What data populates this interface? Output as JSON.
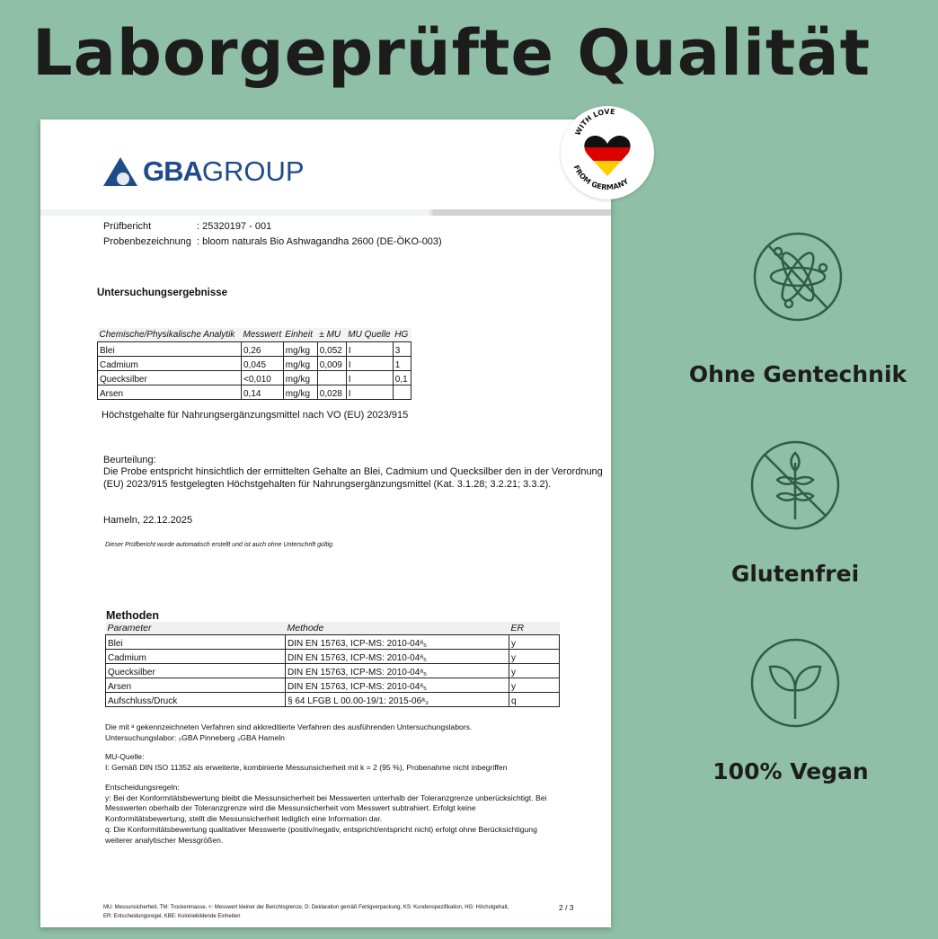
{
  "headline": "Laborgeprüfte Qualität",
  "badge": {
    "top_text": "WITH LOVE",
    "bottom_text": "FROM GERMANY",
    "colors": [
      "#000000",
      "#dd0000",
      "#ffce00"
    ]
  },
  "logo": {
    "bold": "GBA",
    "regular": "GROUP",
    "color": "#1f4b8a"
  },
  "report": {
    "meta": [
      {
        "label": "Prüfbericht",
        "value": ": 25320197 - 001"
      },
      {
        "label": "Probenbezeichnung",
        "value": ": bloom naturals Bio Ashwagandha 2600 (DE-ÖKO-003)"
      }
    ],
    "results_title": "Untersuchungsergebnisse",
    "results_headers": [
      "Chemische/Physikalische Analytik",
      "Messwert",
      "Einheit",
      "± MU",
      "MU Quelle",
      "HG"
    ],
    "results_rows": [
      [
        "Blei",
        "0,26",
        "mg/kg",
        "0,052",
        "I",
        "3"
      ],
      [
        "Cadmium",
        "0,045",
        "mg/kg",
        "0,009",
        "I",
        "1"
      ],
      [
        "Quecksilber",
        "<0,010",
        "mg/kg",
        "",
        "I",
        "0,1"
      ],
      [
        "Arsen",
        "0,14",
        "mg/kg",
        "0,028",
        "I",
        ""
      ]
    ],
    "results_note": "Höchstgehalte für Nahrungsergänzungsmittel nach VO (EU) 2023/915",
    "assessment_label": "Beurteilung:",
    "assessment_lines": [
      "Die Probe entspricht hinsichtlich der ermittelten Gehalte an Blei, Cadmium und Quecksilber den in der Verordnung",
      "(EU) 2023/915 festgelegten Höchstgehalten für Nahrungsergänzungsmittel (Kat. 3.1.28; 3.2.21; 3.3.2)."
    ],
    "place_date": "Hameln, 22.12.2025",
    "auto_note": "Dieser Prüfbericht wurde automatisch erstellt und ist auch ohne Unterschrift gültig.",
    "methods_title": "Methoden",
    "methods_headers": [
      "Parameter",
      "Methode",
      "ER"
    ],
    "methods_rows": [
      [
        "Blei",
        "DIN EN 15763, ICP-MS: 2010-04ᵃ₅",
        "y"
      ],
      [
        "Cadmium",
        "DIN EN 15763, ICP-MS: 2010-04ᵃ₅",
        "y"
      ],
      [
        "Quecksilber",
        "DIN EN 15763, ICP-MS: 2010-04ᵃ₅",
        "y"
      ],
      [
        "Arsen",
        "DIN EN 15763, ICP-MS: 2010-04ᵃ₅",
        "y"
      ],
      [
        "Aufschluss/Druck",
        "§ 64 LFGB L 00.00-19/1: 2015-06ᵃ₃",
        "q"
      ]
    ],
    "accredit_lines": [
      "Die mit ᵃ gekennzeichneten Verfahren sind akkreditierte Verfahren des ausführenden Untersuchungslabors.",
      "Untersuchungslabor:  ₅GBA Pinneberg  ₃GBA Hameln"
    ],
    "mu_label": "MU-Quelle:",
    "mu_text": "I: Gemäß DIN ISO 11352 als erweiterte, kombinierte Messunsicherheit mit k = 2 (95 %), Probenahme nicht inbegriffen",
    "rules_label": "Entscheidungsregeln:",
    "rules_lines": [
      "y: Bei der Konformitätsbewertung bleibt die Messunsicherheit bei Messwerten unterhalb der Toleranzgrenze unberücksichtigt. Bei",
      "Messwerten oberhalb der Toleranzgrenze wird die Messunsicherheit vom Messwert subtrahiert. Erfolgt keine",
      "Konformitätsbewertung, stellt die Messunsicherheit lediglich eine Information dar.",
      "q: Die Konformitätsbewertung qualitativer Messwerte (positiv/negativ, entspricht/entspricht nicht) erfolgt ohne Berücksichtigung",
      "weiterer analytischer Messgrößen."
    ],
    "footer_lines": [
      "MU: Messunsicherheit, TM: Trockenmasse, <: Messwert kleiner der Berichtsgrenze, D: Deklaration gemäß Fertigverpackung, KS: Kundenspezifikation, HG: Höchstgehalt,",
      "ER: Entscheidungsregel, KBE: Koloniebildende Einheiten"
    ],
    "page": "2 / 3"
  },
  "features": [
    {
      "icon": "no-gmo-atom-icon",
      "label": "Ohne Gentechnik"
    },
    {
      "icon": "no-wheat-icon",
      "label": "Glutenfrei"
    },
    {
      "icon": "leaf-sprout-icon",
      "label": "100% Vegan"
    }
  ],
  "colors": {
    "background": "#8fbfa6",
    "icon": "#2f5d45",
    "logo": "#1f4b8a"
  }
}
